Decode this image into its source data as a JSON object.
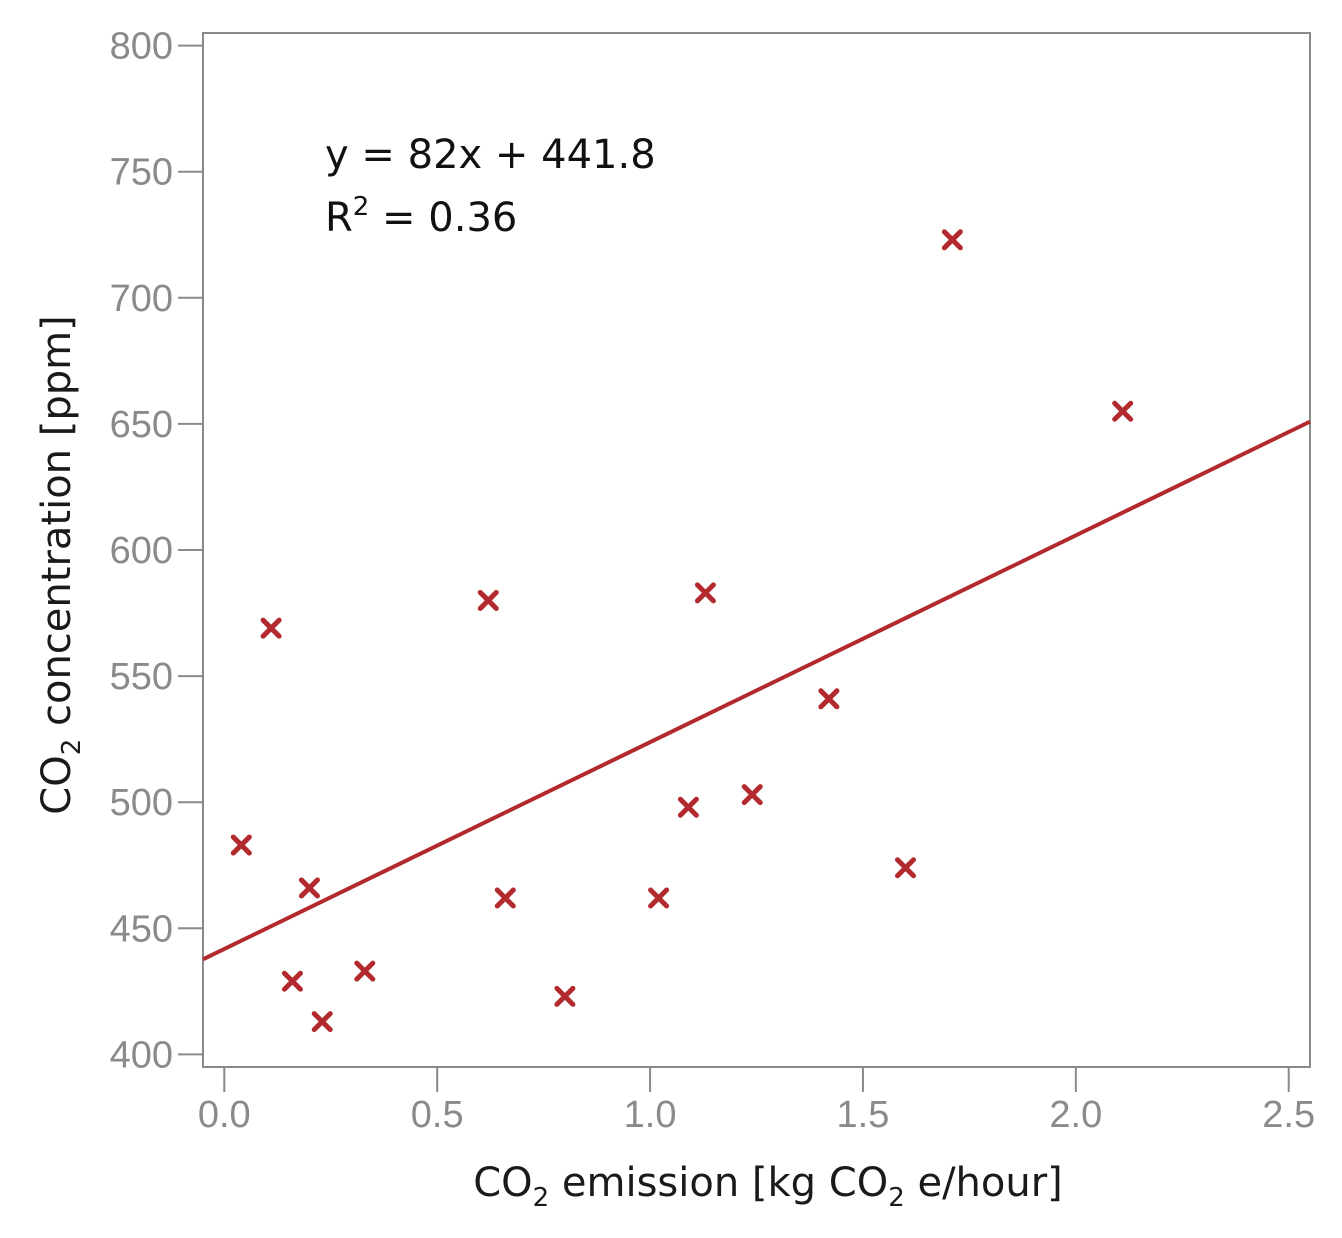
{
  "chart_data": {
    "type": "scatter",
    "x_label": {
      "prefix": "CO",
      "sub1": "2",
      "mid": " emission [kg CO",
      "sub2": "2",
      "suffix": " e/hour]"
    },
    "y_label": {
      "prefix": "CO",
      "sub": "2",
      "suffix": " concentration [ppm]"
    },
    "xlim": [
      -0.05,
      2.55
    ],
    "ylim": [
      395,
      805
    ],
    "x_ticks": [
      0.0,
      0.5,
      1.0,
      1.5,
      2.0,
      2.5
    ],
    "x_tick_labels": [
      "0.0",
      "0.5",
      "1.0",
      "1.5",
      "2.0",
      "2.5"
    ],
    "y_ticks": [
      400,
      450,
      500,
      550,
      600,
      650,
      700,
      750,
      800
    ],
    "y_tick_labels": [
      "400",
      "450",
      "500",
      "550",
      "600",
      "650",
      "700",
      "750",
      "800"
    ],
    "grid": false,
    "colors": {
      "marker": "#b22a2e",
      "trendline": "#b22a2e",
      "frame": "#8a8a8a"
    },
    "marker": "x",
    "points": [
      {
        "x": 0.04,
        "y": 483
      },
      {
        "x": 0.11,
        "y": 569
      },
      {
        "x": 0.16,
        "y": 429
      },
      {
        "x": 0.2,
        "y": 466
      },
      {
        "x": 0.23,
        "y": 413
      },
      {
        "x": 0.33,
        "y": 433
      },
      {
        "x": 0.62,
        "y": 580
      },
      {
        "x": 0.66,
        "y": 462
      },
      {
        "x": 0.8,
        "y": 423
      },
      {
        "x": 1.02,
        "y": 462
      },
      {
        "x": 1.09,
        "y": 498
      },
      {
        "x": 1.13,
        "y": 583
      },
      {
        "x": 1.24,
        "y": 503
      },
      {
        "x": 1.42,
        "y": 541
      },
      {
        "x": 1.6,
        "y": 474
      },
      {
        "x": 1.71,
        "y": 723
      },
      {
        "x": 2.11,
        "y": 655
      }
    ],
    "trendline": {
      "slope": 82,
      "intercept": 441.8
    },
    "annotation": {
      "equation": "y = 82x + 441.8",
      "r2_prefix": "R",
      "r2_sup": "2",
      "r2_suffix": " = 0.36"
    }
  }
}
